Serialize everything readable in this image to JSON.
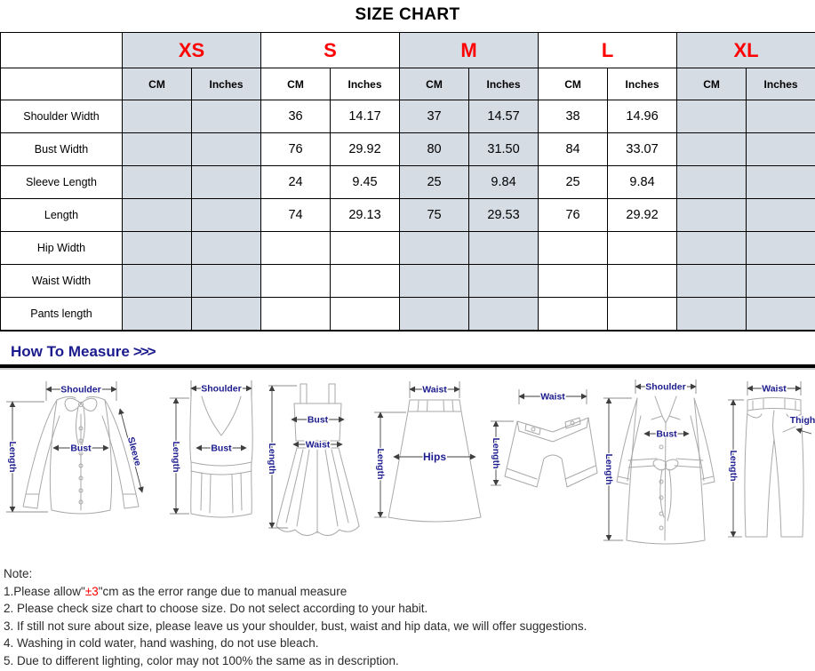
{
  "title": "SIZE CHART",
  "colors": {
    "header_fill": "#d6dce4",
    "size_red": "#ff0000",
    "navy": "#1b1b8e",
    "accent": "#ff0000"
  },
  "table": {
    "sizes": [
      "XS",
      "S",
      "M",
      "L",
      "XL"
    ],
    "unit_headers": [
      "CM",
      "Inches"
    ],
    "rows": [
      {
        "label": "Shoulder Width",
        "values": [
          "",
          "",
          "36",
          "14.17",
          "37",
          "14.57",
          "38",
          "14.96",
          "",
          ""
        ]
      },
      {
        "label": "Bust Width",
        "values": [
          "",
          "",
          "76",
          "29.92",
          "80",
          "31.50",
          "84",
          "33.07",
          "",
          ""
        ]
      },
      {
        "label": "Sleeve Length",
        "values": [
          "",
          "",
          "24",
          "9.45",
          "25",
          "9.84",
          "25",
          "9.84",
          "",
          ""
        ]
      },
      {
        "label": "Length",
        "values": [
          "",
          "",
          "74",
          "29.13",
          "75",
          "29.53",
          "76",
          "29.92",
          "",
          ""
        ]
      },
      {
        "label": "Hip Width",
        "values": [
          "",
          "",
          "",
          "",
          "",
          "",
          "",
          "",
          "",
          ""
        ]
      },
      {
        "label": "Waist Width",
        "values": [
          "",
          "",
          "",
          "",
          "",
          "",
          "",
          "",
          "",
          ""
        ]
      },
      {
        "label": "Pants length",
        "values": [
          "",
          "",
          "",
          "",
          "",
          "",
          "",
          "",
          "",
          ""
        ]
      }
    ]
  },
  "measure": {
    "heading": "How To Measure",
    "arrows": ">>>",
    "figures": [
      {
        "name": "blouse",
        "labels": {
          "shoulder": "Shoulder",
          "length": "Length",
          "bust": "Bust",
          "sleeve": "Sleeve"
        }
      },
      {
        "name": "tank-top",
        "labels": {
          "shoulder": "Shoulder",
          "length": "Length",
          "bust": "Bust"
        }
      },
      {
        "name": "dress",
        "labels": {
          "bust": "Bust",
          "waist": "Waist",
          "length": "Length"
        }
      },
      {
        "name": "skirt",
        "labels": {
          "waist": "Waist",
          "hips": "Hips",
          "length": "Length"
        }
      },
      {
        "name": "shorts",
        "labels": {
          "waist": "Waist",
          "length": "Length"
        }
      },
      {
        "name": "coat",
        "labels": {
          "shoulder": "Shoulder",
          "bust": "Bust",
          "length": "Length"
        }
      },
      {
        "name": "pants",
        "labels": {
          "waist": "Waist",
          "thigh": "Thigh",
          "length": "Length"
        }
      }
    ]
  },
  "notes": {
    "heading": "Note:",
    "line1_prefix": "1.Please allow\"",
    "line1_accent": "±3",
    "line1_suffix": "\"cm as the error range due to manual measure",
    "items": [
      "2. Please check size chart to choose size. Do not select according to your habit.",
      "3. If still not sure about size, please leave us your shoulder, bust, waist and hip data, we will offer suggestions.",
      "4. Washing in cold water, hand washing, do not use bleach.",
      "5. Due to different lighting, color may not 100% the same as in description."
    ]
  }
}
